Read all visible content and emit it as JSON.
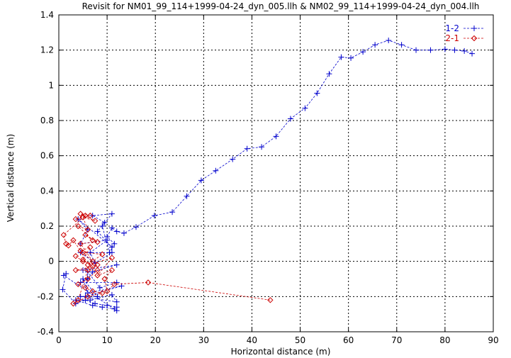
{
  "chart_data": {
    "type": "scatter",
    "title": "Revisit for NM01_99_114+1999-04-24_dyn_005.llh & NM02_99_114+1999-04-24_dyn_004.llh",
    "xlabel": "Horizontal distance (m)",
    "ylabel": "Vertical distance (m)",
    "xlim": [
      0,
      90
    ],
    "ylim": [
      -0.4,
      1.4
    ],
    "xticks": [
      "0",
      "10",
      "20",
      "30",
      "40",
      "50",
      "60",
      "70",
      "80",
      "90"
    ],
    "yticks": [
      "-0.4",
      "-0.2",
      "0",
      "0.2",
      "0.4",
      "0.6",
      "0.8",
      "1",
      "1.2",
      "1.4"
    ],
    "grid": true,
    "legend_position": "top-right",
    "series": [
      {
        "name": "1-2",
        "color": "#0000cc",
        "marker": "plus",
        "line": "dashed",
        "x": [
          85.6,
          84.0,
          82.0,
          80.0,
          77.0,
          74.0,
          71.0,
          68.3,
          65.5,
          63.0,
          60.5,
          58.5,
          56.0,
          53.5,
          51.0,
          48.0,
          45.0,
          42.0,
          39.0,
          36.0,
          32.5,
          29.5,
          26.5,
          23.5,
          19.8,
          16.0,
          13.5,
          12.0,
          11.0,
          10.0,
          11.5,
          10.5,
          9.0,
          11.0,
          7.0,
          9.5,
          8.0,
          11.0,
          4.0,
          6.0,
          4.5,
          10.0,
          6.5,
          7.5,
          4.5,
          11.0,
          5.0,
          12.0,
          7.0,
          6.0,
          4.5,
          12.0,
          8.5,
          6.0,
          5.5,
          13.0,
          6.0,
          5.0,
          8.0,
          4.5,
          12.0,
          11.0,
          6.5,
          3.5,
          7.0,
          9.0,
          11.5,
          12.0,
          1.0,
          1.5,
          0.8,
          3.5,
          5.5,
          7.5,
          10.0,
          12.0
        ],
        "y": [
          1.18,
          1.195,
          1.2,
          1.205,
          1.2,
          1.2,
          1.23,
          1.255,
          1.23,
          1.19,
          1.155,
          1.16,
          1.065,
          0.955,
          0.87,
          0.81,
          0.71,
          0.65,
          0.64,
          0.58,
          0.515,
          0.46,
          0.37,
          0.28,
          0.26,
          0.195,
          0.16,
          0.17,
          0.19,
          0.14,
          0.1,
          0.05,
          0.2,
          0.27,
          0.26,
          0.22,
          0.17,
          0.08,
          0.24,
          0.18,
          0.1,
          0.12,
          0.05,
          -0.01,
          0.05,
          0.05,
          -0.05,
          -0.02,
          -0.06,
          -0.1,
          -0.12,
          -0.12,
          -0.15,
          -0.06,
          -0.2,
          -0.14,
          -0.18,
          -0.1,
          -0.2,
          -0.2,
          -0.23,
          -0.19,
          -0.22,
          -0.22,
          -0.25,
          -0.26,
          -0.27,
          -0.28,
          -0.08,
          -0.07,
          -0.16,
          -0.24,
          -0.22,
          -0.24,
          -0.25,
          -0.26
        ]
      },
      {
        "name": "2-1",
        "color": "#cc0000",
        "marker": "diamond",
        "line": "dashed",
        "x": [
          43.8,
          18.5,
          11.5,
          10.0,
          9.5,
          11.0,
          8.0,
          11.0,
          6.0,
          9.0,
          5.0,
          7.0,
          4.5,
          8.0,
          5.5,
          7.0,
          4.0,
          6.0,
          5.0,
          7.5,
          4.5,
          6.5,
          3.5,
          5.5,
          1.0,
          1.5,
          2.0,
          3.0,
          4.5,
          6.5,
          5.0,
          7.0,
          3.5,
          8.0,
          6.0,
          4.0,
          5.5,
          7.0,
          9.0,
          6.0,
          3.0,
          4.0,
          6.0,
          8.0,
          5.0,
          3.5
        ],
        "y": [
          -0.22,
          -0.12,
          -0.13,
          -0.17,
          -0.1,
          -0.05,
          -0.08,
          0.02,
          -0.02,
          0.04,
          0.05,
          0.0,
          0.1,
          0.11,
          0.15,
          0.12,
          0.2,
          0.18,
          0.25,
          0.23,
          0.27,
          0.26,
          0.24,
          0.26,
          0.15,
          0.1,
          0.09,
          0.12,
          0.06,
          0.08,
          0.01,
          -0.03,
          -0.05,
          -0.05,
          -0.1,
          -0.13,
          -0.15,
          -0.17,
          -0.18,
          -0.2,
          -0.24,
          -0.22,
          -0.05,
          -0.02,
          0.0,
          0.03
        ]
      }
    ]
  }
}
